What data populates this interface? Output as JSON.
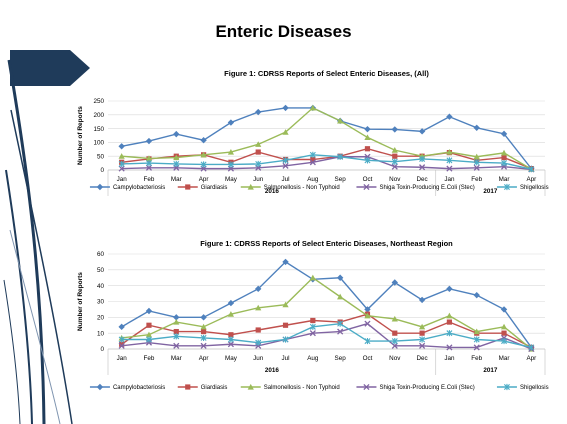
{
  "slide": {
    "title": "Enteric Diseases"
  },
  "colors": {
    "accent": "#1f3b5a",
    "grid": "#d9d9d9",
    "axis": "#bfbfbf",
    "series": [
      "#4f81bd",
      "#c0504d",
      "#9bbb59",
      "#8064a2",
      "#4bacc6"
    ],
    "markers": [
      "diamond",
      "square",
      "triangle",
      "x",
      "star"
    ]
  },
  "chart_data": [
    {
      "type": "line",
      "title": "Figure 1: CDRSS Reports of Select Enteric Diseases, (All)",
      "ylabel": "Number of Reports",
      "xlabel": "",
      "categories": [
        "Jan",
        "Feb",
        "Mar",
        "Apr",
        "May",
        "Jun",
        "Jul",
        "Aug",
        "Sep",
        "Oct",
        "Nov",
        "Dec",
        "Jan",
        "Feb",
        "Mar",
        "Apr"
      ],
      "year_groups": [
        {
          "label": "2016",
          "start": 0,
          "end": 11
        },
        {
          "label": "2017",
          "start": 12,
          "end": 15
        }
      ],
      "ylim": [
        0,
        250
      ],
      "yticks": [
        0,
        50,
        100,
        150,
        200,
        250
      ],
      "grid": true,
      "legend": "bottom",
      "series": [
        {
          "name": "Campylobacteriosis",
          "values": [
            86,
            105,
            130,
            108,
            172,
            210,
            225,
            225,
            178,
            148,
            147,
            140,
            193,
            153,
            131,
            5
          ]
        },
        {
          "name": "Giardiasis",
          "values": [
            28,
            40,
            50,
            55,
            28,
            65,
            38,
            38,
            50,
            77,
            50,
            50,
            63,
            35,
            45,
            5
          ]
        },
        {
          "name": "Salmonellosis - Non Typhoid",
          "values": [
            50,
            42,
            45,
            55,
            65,
            93,
            137,
            225,
            178,
            118,
            72,
            50,
            65,
            48,
            62,
            3
          ]
        },
        {
          "name": "Shiga Toxin-Producing E.Coli (Stec)",
          "values": [
            5,
            8,
            8,
            5,
            5,
            8,
            15,
            28,
            48,
            48,
            12,
            10,
            5,
            8,
            12,
            2
          ]
        },
        {
          "name": "Shigellosis",
          "values": [
            22,
            25,
            22,
            20,
            20,
            22,
            35,
            55,
            48,
            35,
            30,
            40,
            35,
            28,
            25,
            3
          ]
        }
      ]
    },
    {
      "type": "line",
      "title": "Figure 1: CDRSS Reports of Select Enteric Diseases, Northeast Region",
      "ylabel": "Number of Reports",
      "xlabel": "",
      "categories": [
        "Jan",
        "Feb",
        "Mar",
        "Apr",
        "May",
        "Jun",
        "Jul",
        "Aug",
        "Sep",
        "Oct",
        "Nov",
        "Dec",
        "Jan",
        "Feb",
        "Mar",
        "Apr"
      ],
      "year_groups": [
        {
          "label": "2016",
          "start": 0,
          "end": 11
        },
        {
          "label": "2017",
          "start": 12,
          "end": 15
        }
      ],
      "ylim": [
        0,
        60
      ],
      "yticks": [
        0,
        10,
        20,
        30,
        40,
        50,
        60
      ],
      "grid": true,
      "legend": "bottom",
      "series": [
        {
          "name": "Campylobacteriosis",
          "values": [
            14,
            24,
            20,
            20,
            29,
            38,
            55,
            44,
            45,
            25,
            42,
            31,
            38,
            34,
            25,
            1
          ]
        },
        {
          "name": "Giardiasis",
          "values": [
            3,
            15,
            11,
            11,
            9,
            12,
            15,
            18,
            17,
            22,
            10,
            10,
            17,
            10,
            10,
            1
          ]
        },
        {
          "name": "Salmonellosis - Non Typhoid",
          "values": [
            7,
            9,
            17,
            14,
            22,
            26,
            28,
            45,
            33,
            21,
            19,
            14,
            21,
            11,
            14,
            0
          ]
        },
        {
          "name": "Shiga Toxin-Producing E.Coli (Stec)",
          "values": [
            2,
            4,
            2,
            2,
            3,
            2,
            6,
            10,
            11,
            16,
            2,
            2,
            1,
            1,
            7,
            0
          ]
        },
        {
          "name": "Shigellosis",
          "values": [
            6,
            6,
            8,
            7,
            6,
            4,
            6,
            14,
            16,
            5,
            5,
            6,
            10,
            6,
            5,
            1
          ]
        }
      ]
    }
  ]
}
